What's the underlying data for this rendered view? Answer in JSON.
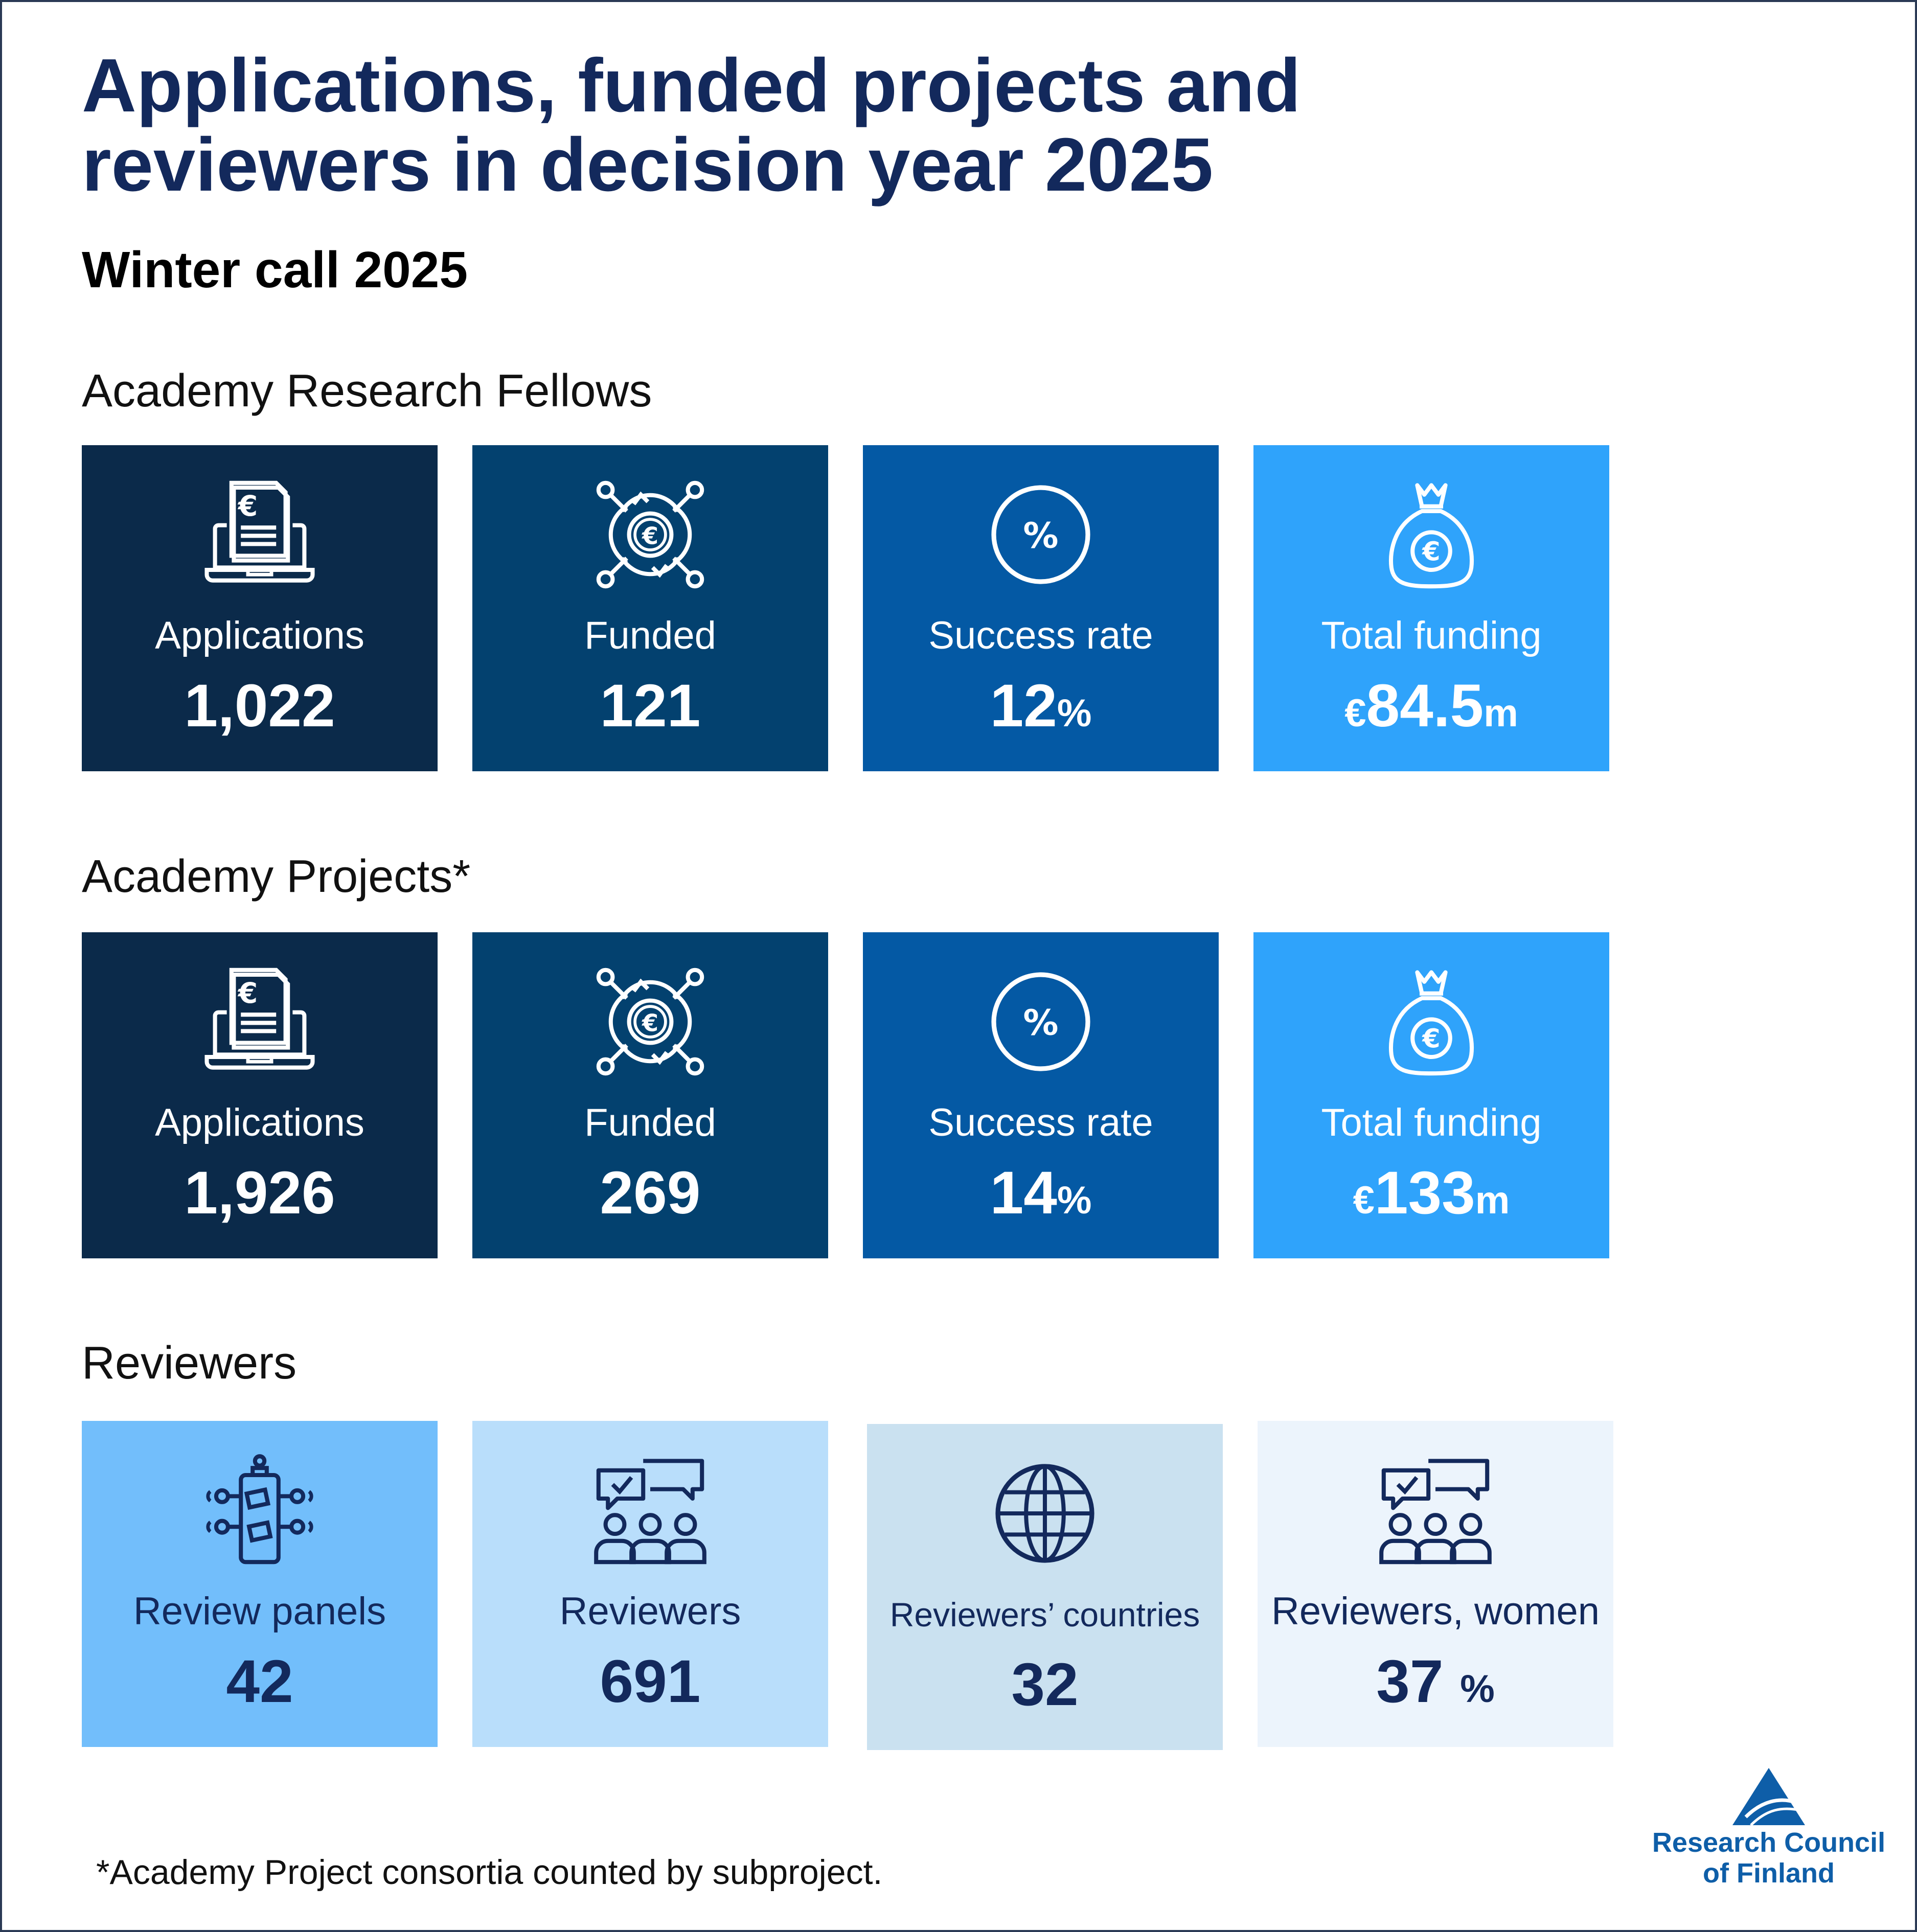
{
  "header": {
    "title_line1": "Applications, funded projects and",
    "title_line2": "reviewers in decision year 2025",
    "subtitle": "Winter call 2025"
  },
  "sections": [
    {
      "heading": "Academy Research Fellows",
      "tiles": [
        {
          "icon": "invoice-laptop-icon",
          "label": "Applications",
          "value": "1,022",
          "unit": ""
        },
        {
          "icon": "funding-network-icon",
          "label": "Funded",
          "value": "121",
          "unit": ""
        },
        {
          "icon": "percent-circle-icon",
          "label": "Success rate",
          "value": "12",
          "unit": "%"
        },
        {
          "icon": "money-bag-icon",
          "label": "Total funding",
          "prefix": "€",
          "value": "84.5",
          "unit": "m"
        }
      ]
    },
    {
      "heading": "Academy Projects*",
      "tiles": [
        {
          "icon": "invoice-laptop-icon",
          "label": "Applications",
          "value": "1,926",
          "unit": ""
        },
        {
          "icon": "funding-network-icon",
          "label": "Funded",
          "value": "269",
          "unit": ""
        },
        {
          "icon": "percent-circle-icon",
          "label": "Success rate",
          "value": "14",
          "unit": "%"
        },
        {
          "icon": "money-bag-icon",
          "label": "Total funding",
          "prefix": "€",
          "value": "133",
          "unit": "m"
        }
      ]
    },
    {
      "heading": "Reviewers",
      "tiles": [
        {
          "icon": "review-panel-icon",
          "label": "Review panels",
          "value": "42",
          "unit": ""
        },
        {
          "icon": "reviewers-group-icon",
          "label": "Reviewers",
          "value": "691",
          "unit": ""
        },
        {
          "icon": "globe-icon",
          "label": "Reviewers’ countries",
          "value": "32",
          "unit": ""
        },
        {
          "icon": "reviewers-group-icon",
          "label": "Reviewers, women",
          "value": "37 ",
          "unit": "%"
        }
      ]
    }
  ],
  "colors": {
    "title": "#13295c",
    "tile_navy": "#0b2a4a",
    "tile_dark_blue": "#03416f",
    "tile_mid_blue": "#0459a4",
    "tile_sky": "#2fa3fb",
    "reviewer_tiles": [
      "#72befb",
      "#b9defb",
      "#cae1f0",
      "#ecf4fc"
    ],
    "logo": "#0e5ea8"
  },
  "footnote": "*Academy Project consortia counted by subproject.",
  "logo": {
    "icon": "triangle-logo-icon",
    "line1": "Research Council",
    "line2": "of Finland"
  }
}
